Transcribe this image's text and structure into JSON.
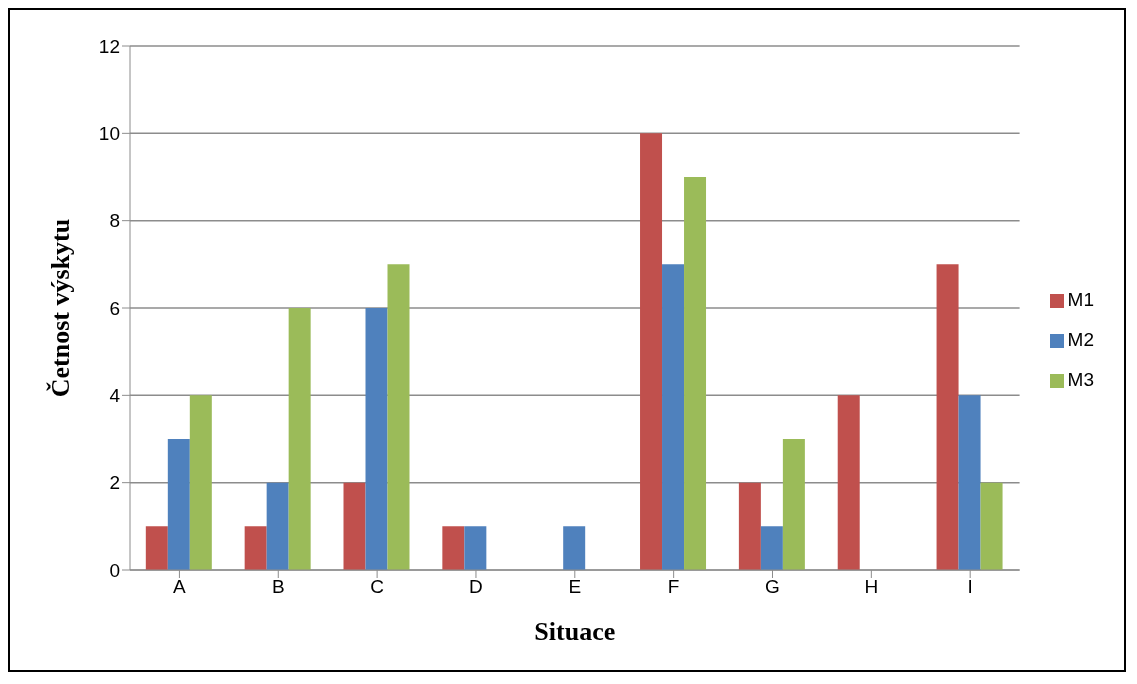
{
  "chart_data": {
    "type": "bar",
    "xlabel": "Situace",
    "ylabel": "Četnost výskytu",
    "categories": [
      "A",
      "B",
      "C",
      "D",
      "E",
      "F",
      "G",
      "H",
      "I"
    ],
    "series": [
      {
        "name": "M1",
        "color": "#c0504d",
        "values": [
          1,
          1,
          2,
          1,
          0,
          10,
          2,
          4,
          7
        ]
      },
      {
        "name": "M2",
        "color": "#4f81bd",
        "values": [
          3,
          2,
          6,
          1,
          1,
          7,
          1,
          0,
          4
        ]
      },
      {
        "name": "M3",
        "color": "#9bbb59",
        "values": [
          4,
          6,
          7,
          0,
          0,
          9,
          3,
          0,
          2
        ]
      }
    ],
    "ylim": [
      0,
      12
    ],
    "yticks": [
      0,
      2,
      4,
      6,
      8,
      10,
      12
    ],
    "grid": "y",
    "legend": "right"
  }
}
